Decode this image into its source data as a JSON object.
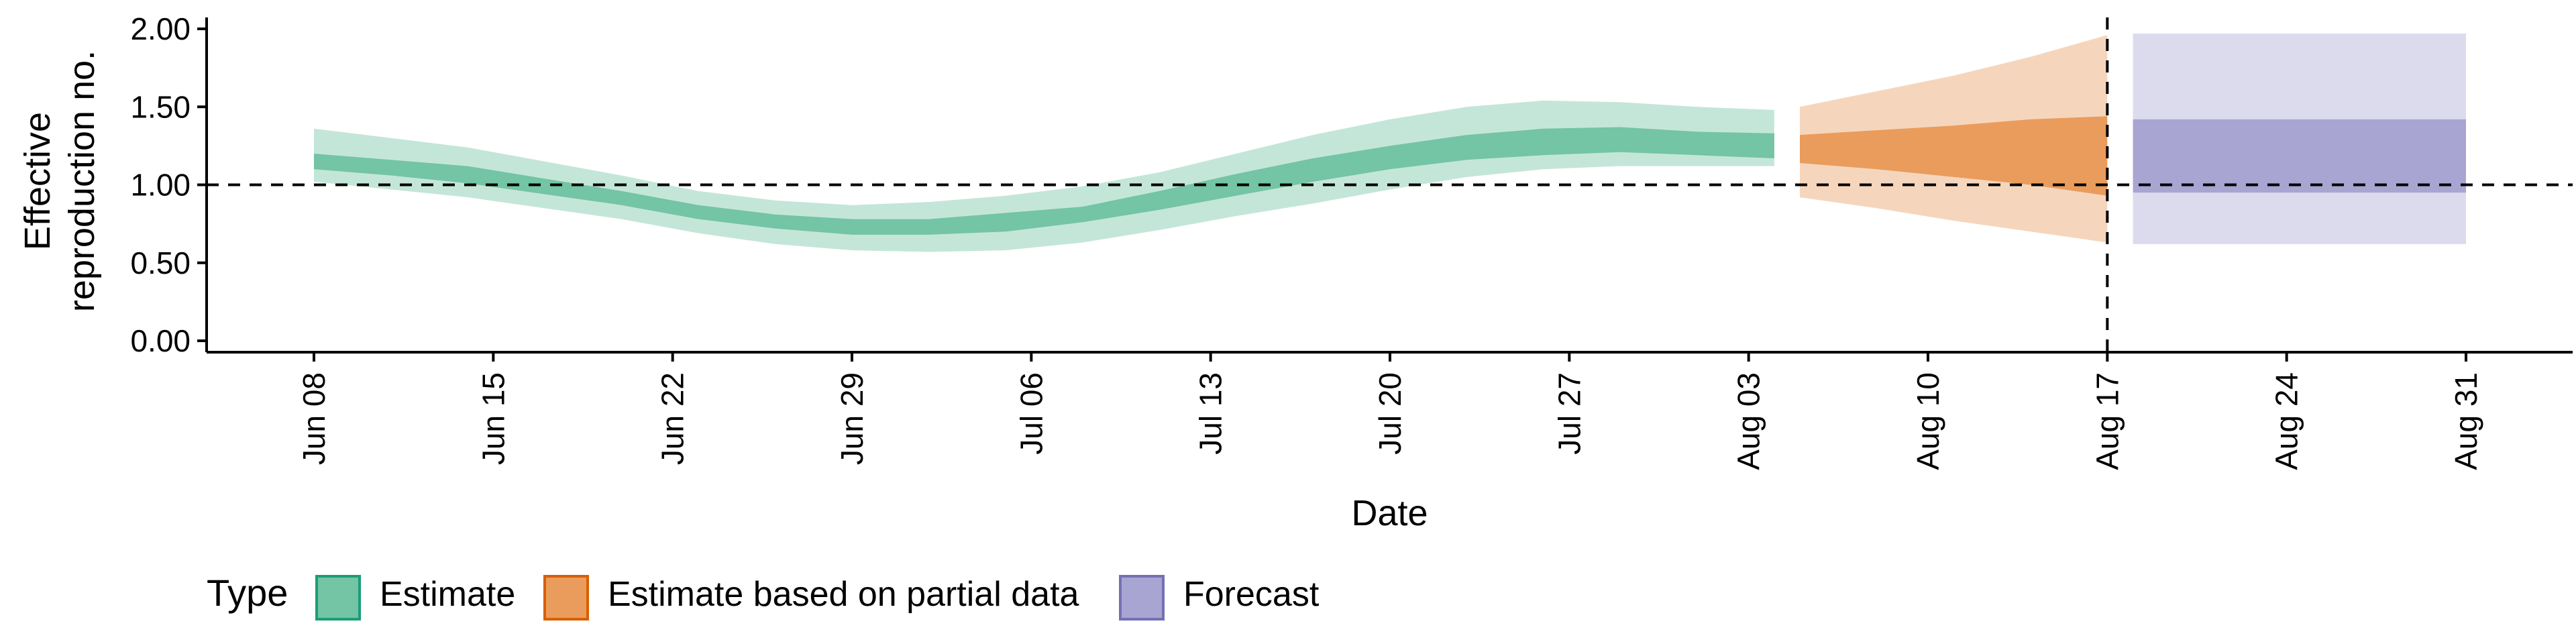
{
  "chart_data": {
    "type": "area",
    "title": "",
    "xlabel": "Date",
    "ylabel": "Effective reproduction no.",
    "ylim": [
      0.0,
      2.0
    ],
    "xlim": [
      "2020-06-08",
      "2020-08-31"
    ],
    "grid": false,
    "reference_lines": [
      {
        "axis": "y",
        "value": 1.0,
        "style": "dashed"
      },
      {
        "axis": "x",
        "value": "2020-08-17",
        "style": "dashed"
      }
    ],
    "y_ticks": [
      {
        "value": 0.0,
        "label": "0.00"
      },
      {
        "value": 0.5,
        "label": "0.50"
      },
      {
        "value": 1.0,
        "label": "1.00"
      },
      {
        "value": 1.5,
        "label": "1.50"
      },
      {
        "value": 2.0,
        "label": "2.00"
      }
    ],
    "x_ticks": [
      {
        "value": "2020-06-08",
        "label": "Jun 08"
      },
      {
        "value": "2020-06-15",
        "label": "Jun 15"
      },
      {
        "value": "2020-06-22",
        "label": "Jun 22"
      },
      {
        "value": "2020-06-29",
        "label": "Jun 29"
      },
      {
        "value": "2020-07-06",
        "label": "Jul 06"
      },
      {
        "value": "2020-07-13",
        "label": "Jul 13"
      },
      {
        "value": "2020-07-20",
        "label": "Jul 20"
      },
      {
        "value": "2020-07-27",
        "label": "Jul 27"
      },
      {
        "value": "2020-08-03",
        "label": "Aug 03"
      },
      {
        "value": "2020-08-10",
        "label": "Aug 10"
      },
      {
        "value": "2020-08-17",
        "label": "Aug 17"
      },
      {
        "value": "2020-08-24",
        "label": "Aug 24"
      },
      {
        "value": "2020-08-31",
        "label": "Aug 31"
      }
    ],
    "legend": {
      "title": "Type",
      "placement": "bottom-left",
      "entries": [
        {
          "label": "Estimate",
          "fill": "#74c4a6",
          "stroke": "#1b9e77"
        },
        {
          "label": "Estimate based on partial data",
          "fill": "#ea9c5c",
          "stroke": "#d95f02"
        },
        {
          "label": "Forecast",
          "fill": "#a9a5d2",
          "stroke": "#7570b3"
        }
      ]
    },
    "series": [
      {
        "name": "Estimate",
        "outer_color": "#c4e6d9",
        "inner_color": "#74c4a6",
        "points": [
          {
            "x": "2020-06-08",
            "lo90": 1.02,
            "lo50": 1.1,
            "hi50": 1.2,
            "hi90": 1.36
          },
          {
            "x": "2020-06-11",
            "lo90": 0.97,
            "lo50": 1.06,
            "hi50": 1.16,
            "hi90": 1.3
          },
          {
            "x": "2020-06-14",
            "lo90": 0.92,
            "lo50": 1.01,
            "hi50": 1.12,
            "hi90": 1.24
          },
          {
            "x": "2020-06-17",
            "lo90": 0.85,
            "lo50": 0.94,
            "hi50": 1.04,
            "hi90": 1.15
          },
          {
            "x": "2020-06-20",
            "lo90": 0.78,
            "lo50": 0.87,
            "hi50": 0.96,
            "hi90": 1.06
          },
          {
            "x": "2020-06-23",
            "lo90": 0.69,
            "lo50": 0.78,
            "hi50": 0.87,
            "hi90": 0.96
          },
          {
            "x": "2020-06-26",
            "lo90": 0.62,
            "lo50": 0.72,
            "hi50": 0.81,
            "hi90": 0.9
          },
          {
            "x": "2020-06-29",
            "lo90": 0.58,
            "lo50": 0.68,
            "hi50": 0.78,
            "hi90": 0.87
          },
          {
            "x": "2020-07-02",
            "lo90": 0.57,
            "lo50": 0.68,
            "hi50": 0.78,
            "hi90": 0.89
          },
          {
            "x": "2020-07-05",
            "lo90": 0.58,
            "lo50": 0.7,
            "hi50": 0.82,
            "hi90": 0.93
          },
          {
            "x": "2020-07-08",
            "lo90": 0.63,
            "lo50": 0.76,
            "hi50": 0.86,
            "hi90": 0.99
          },
          {
            "x": "2020-07-11",
            "lo90": 0.71,
            "lo50": 0.84,
            "hi50": 0.96,
            "hi90": 1.08
          },
          {
            "x": "2020-07-14",
            "lo90": 0.8,
            "lo50": 0.93,
            "hi50": 1.07,
            "hi90": 1.2
          },
          {
            "x": "2020-07-17",
            "lo90": 0.88,
            "lo50": 1.02,
            "hi50": 1.17,
            "hi90": 1.32
          },
          {
            "x": "2020-07-20",
            "lo90": 0.97,
            "lo50": 1.1,
            "hi50": 1.25,
            "hi90": 1.42
          },
          {
            "x": "2020-07-23",
            "lo90": 1.05,
            "lo50": 1.16,
            "hi50": 1.32,
            "hi90": 1.5
          },
          {
            "x": "2020-07-26",
            "lo90": 1.1,
            "lo50": 1.19,
            "hi50": 1.36,
            "hi90": 1.54
          },
          {
            "x": "2020-07-29",
            "lo90": 1.12,
            "lo50": 1.21,
            "hi50": 1.37,
            "hi90": 1.53
          },
          {
            "x": "2020-08-01",
            "lo90": 1.12,
            "lo50": 1.19,
            "hi50": 1.34,
            "hi90": 1.5
          },
          {
            "x": "2020-08-04",
            "lo90": 1.12,
            "lo50": 1.17,
            "hi50": 1.33,
            "hi90": 1.48
          }
        ]
      },
      {
        "name": "Estimate based on partial data",
        "outer_color": "#f5d6bd",
        "inner_color": "#ea9c5c",
        "points": [
          {
            "x": "2020-08-05",
            "lo90": 0.92,
            "lo50": 1.14,
            "hi50": 1.32,
            "hi90": 1.5
          },
          {
            "x": "2020-08-08",
            "lo90": 0.85,
            "lo50": 1.1,
            "hi50": 1.35,
            "hi90": 1.6
          },
          {
            "x": "2020-08-11",
            "lo90": 0.77,
            "lo50": 1.05,
            "hi50": 1.38,
            "hi90": 1.7
          },
          {
            "x": "2020-08-14",
            "lo90": 0.7,
            "lo50": 1.0,
            "hi50": 1.42,
            "hi90": 1.82
          },
          {
            "x": "2020-08-17",
            "lo90": 0.63,
            "lo50": 0.93,
            "hi50": 1.44,
            "hi90": 1.96
          }
        ]
      },
      {
        "name": "Forecast",
        "outer_color": "#dcdbee",
        "inner_color": "#a9a5d2",
        "points": [
          {
            "x": "2020-08-18",
            "lo90": 0.62,
            "lo50": 0.95,
            "hi50": 1.42,
            "hi90": 1.97
          },
          {
            "x": "2020-08-31",
            "lo90": 0.62,
            "lo50": 0.95,
            "hi50": 1.42,
            "hi90": 1.97
          }
        ]
      }
    ]
  }
}
